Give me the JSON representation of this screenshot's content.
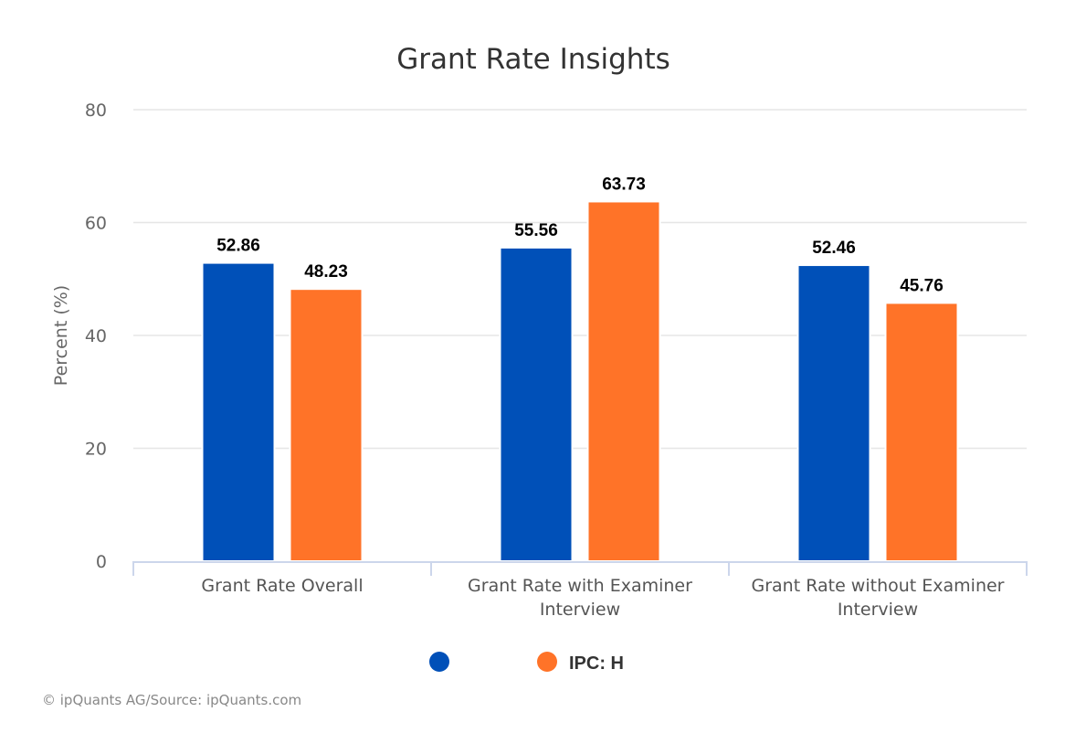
{
  "chart_data": {
    "type": "bar",
    "title": "Grant Rate Insights",
    "subtitle": "",
    "ylabel": "Percent (%)",
    "xlabel": "",
    "ylim": [
      0,
      80
    ],
    "yticks": [
      "0",
      "20",
      "40",
      "60",
      "80"
    ],
    "grid": true,
    "legend_position": "bottom-center",
    "categories": [
      [
        "Grant Rate Overall"
      ],
      [
        "Grant Rate with Examiner",
        "Interview"
      ],
      [
        "Grant Rate without Examiner",
        "Interview"
      ]
    ],
    "series": [
      {
        "name": "",
        "color": "#0050b8",
        "values": [
          52.86,
          55.56,
          52.46
        ],
        "labels": [
          "52.86",
          "55.56",
          "52.46"
        ]
      },
      {
        "name": "IPC: H",
        "color": "#ff7328",
        "values": [
          48.23,
          63.73,
          45.76
        ],
        "labels": [
          "48.23",
          "63.73",
          "45.76"
        ]
      }
    ]
  },
  "credits": "© ipQuants AG/Source: ipQuants.com"
}
